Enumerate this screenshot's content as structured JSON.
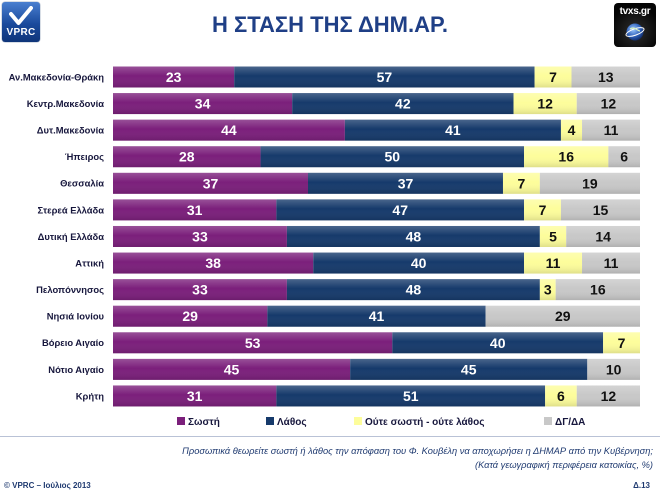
{
  "header": {
    "left_logo_text": "VPRC",
    "right_logo_text": "tvxs.gr"
  },
  "chart_data": {
    "type": "bar",
    "horizontal": true,
    "stacked": true,
    "title": "Η ΣΤΑΣΗ ΤΗΣ ΔΗΜ.ΑΡ.",
    "xlim": [
      0,
      100
    ],
    "grid": false,
    "legend": "bottom",
    "categories": [
      "Αν.Μακεδονία-Θράκη",
      "Κεντρ.Μακεδονία",
      "Δυτ.Μακεδονία",
      "Ήπειρος",
      "Θεσσαλία",
      "Στερεά Ελλάδα",
      "Δυτική Ελλάδα",
      "Αττική",
      "Πελοπόννησος",
      "Νησιά Ιονίου",
      "Βόρειο Αιγαίο",
      "Νότιο Αιγαίο",
      "Κρήτη"
    ],
    "series": [
      {
        "name": "Σωστή",
        "color": "#7b1f7b",
        "label_color": "#ffffff",
        "values": [
          23,
          34,
          44,
          28,
          37,
          31,
          33,
          38,
          33,
          29,
          53,
          45,
          31
        ]
      },
      {
        "name": "Λάθος",
        "color": "#163a6b",
        "label_color": "#ffffff",
        "values": [
          57,
          42,
          41,
          50,
          37,
          47,
          48,
          40,
          48,
          41,
          40,
          45,
          51
        ]
      },
      {
        "name": "Ούτε σωστή - ούτε λάθος",
        "color": "#fdfd9b",
        "label_color": "#111111",
        "values": [
          7,
          12,
          4,
          16,
          7,
          7,
          5,
          11,
          3,
          null,
          7,
          null,
          6
        ]
      },
      {
        "name": "ΔΓ/ΔΑ",
        "color": "#c8c8c8",
        "label_color": "#111111",
        "values": [
          13,
          12,
          11,
          6,
          19,
          15,
          14,
          11,
          16,
          29,
          null,
          10,
          12
        ]
      }
    ]
  },
  "footer": {
    "question": "Προσωπικά θεωρείτε σωστή ή λάθος την απόφαση του Φ. Κουβέλη να αποχωρήσει η ΔΗΜΑΡ από την Κυβέρνηση;",
    "note": "(Κατά γεωγραφική περιφέρεια κατοικίας, %)",
    "copyright": "© VPRC – Ιούλιος 2013",
    "slide_id": "Δ.13"
  },
  "colors": {
    "title": "#1f3f86",
    "labels": "#16163c",
    "footer": "#1f3a70",
    "vprc_brand": "#1a4a9c"
  }
}
